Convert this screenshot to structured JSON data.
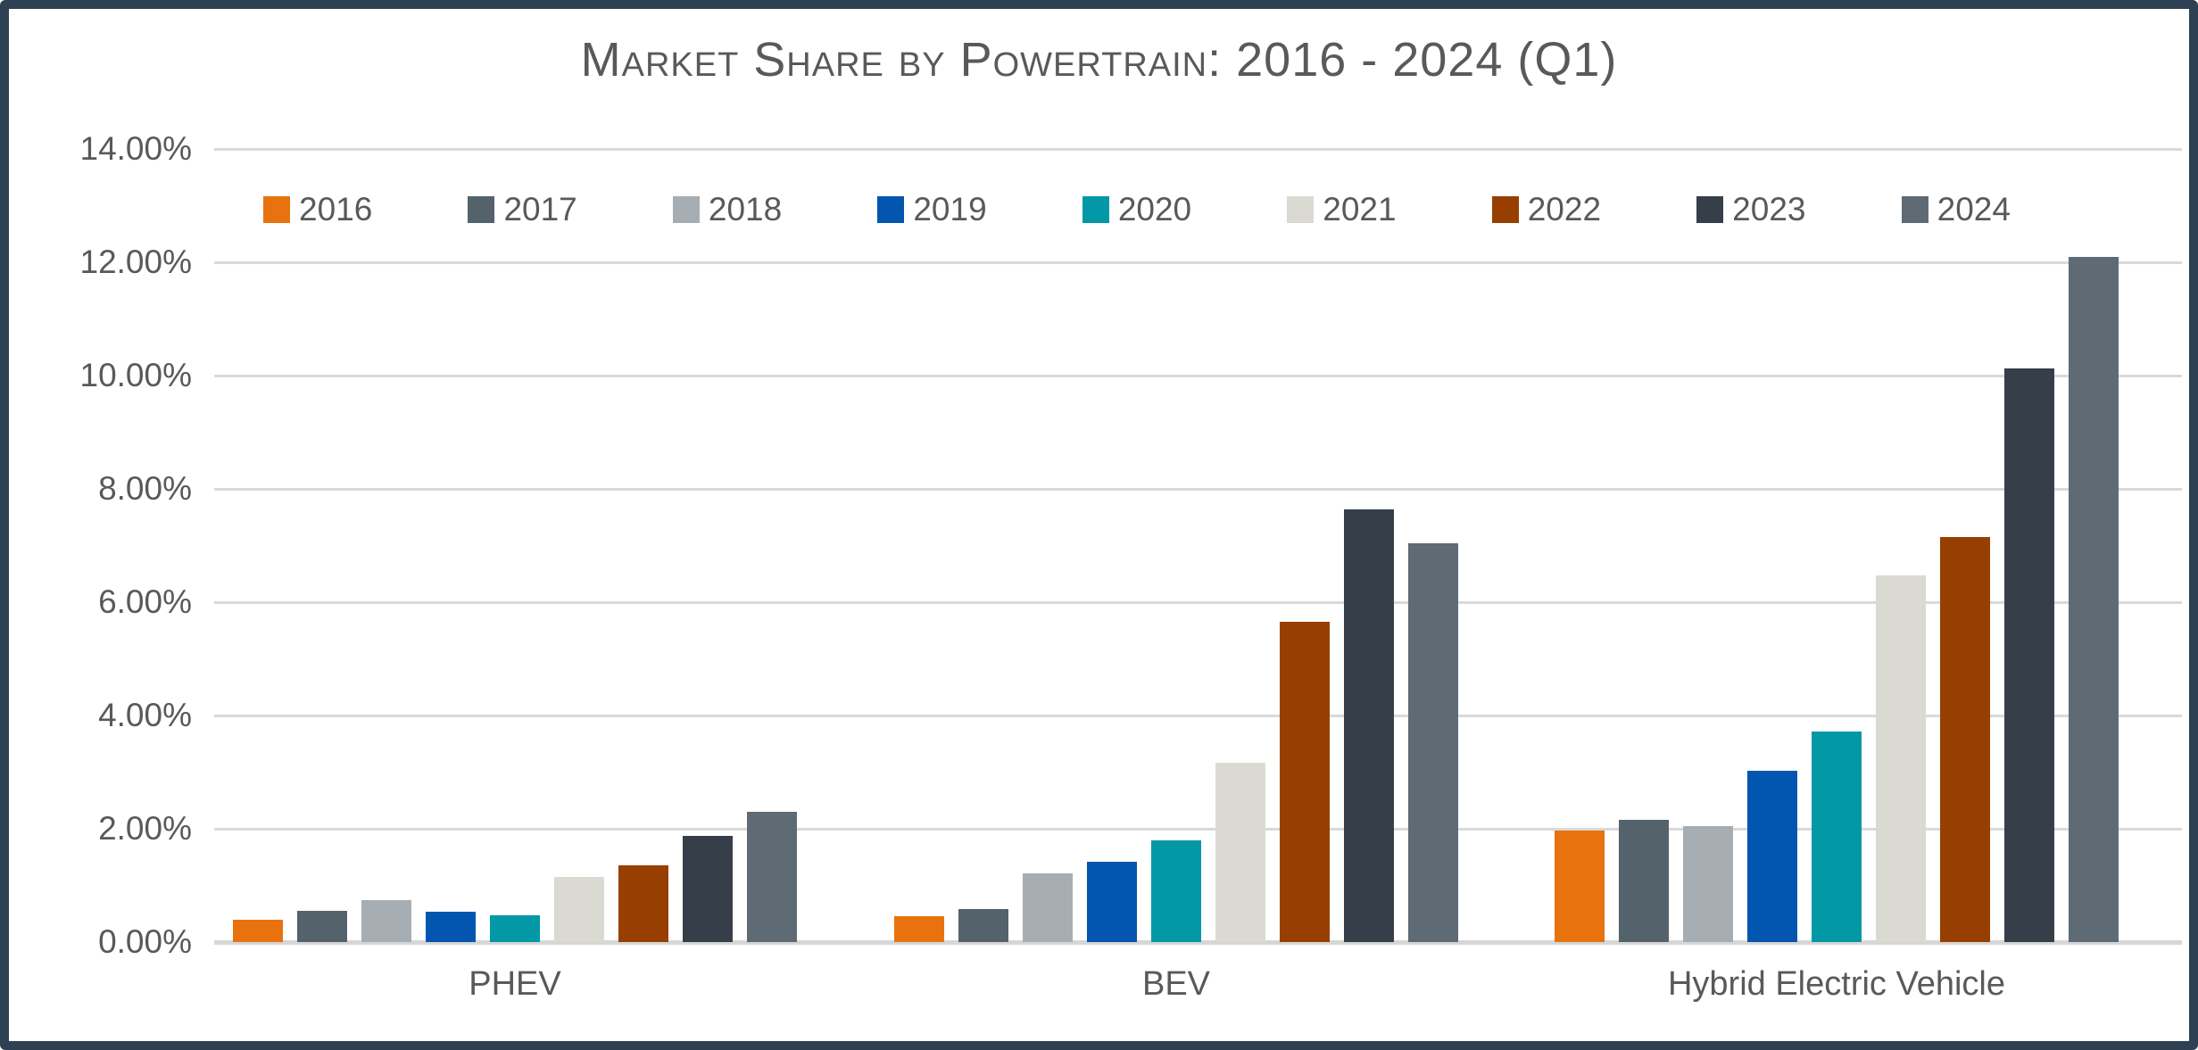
{
  "chart_data": {
    "type": "bar",
    "title": "Market Share by Powertrain: 2016 - 2024 (Q1)",
    "categories": [
      "PHEV",
      "BEV",
      "Hybrid Electric Vehicle"
    ],
    "series": [
      {
        "name": "2016",
        "color": "#E8730E",
        "values": [
          0.4,
          0.45,
          1.97
        ]
      },
      {
        "name": "2017",
        "color": "#54626C",
        "values": [
          0.55,
          0.58,
          2.15
        ]
      },
      {
        "name": "2018",
        "color": "#A7AEB3",
        "values": [
          0.74,
          1.22,
          2.05
        ]
      },
      {
        "name": "2019",
        "color": "#0356AF",
        "values": [
          0.53,
          1.42,
          3.03
        ]
      },
      {
        "name": "2020",
        "color": "#0298A6",
        "values": [
          0.47,
          1.8,
          3.72
        ]
      },
      {
        "name": "2021",
        "color": "#DADAD3",
        "values": [
          1.15,
          3.16,
          6.48
        ]
      },
      {
        "name": "2022",
        "color": "#973F00",
        "values": [
          1.35,
          5.65,
          7.15
        ]
      },
      {
        "name": "2023",
        "color": "#363F49",
        "values": [
          1.88,
          7.63,
          10.12
        ]
      },
      {
        "name": "2024",
        "color": "#5E6B74",
        "values": [
          2.3,
          7.04,
          12.1
        ]
      }
    ],
    "ylim": [
      0,
      14
    ],
    "ytick_step": 2,
    "ytick_labels": [
      "0.00%",
      "2.00%",
      "4.00%",
      "6.00%",
      "8.00%",
      "10.00%",
      "12.00%",
      "14.00%"
    ],
    "grid": "horizontal",
    "legend_position": "top",
    "colors": {
      "frame": "#2E4053",
      "gridline": "#D9D9D9",
      "axis_line": "#D6D6D6",
      "text": "#595959",
      "background": "#FFFFFF"
    }
  }
}
